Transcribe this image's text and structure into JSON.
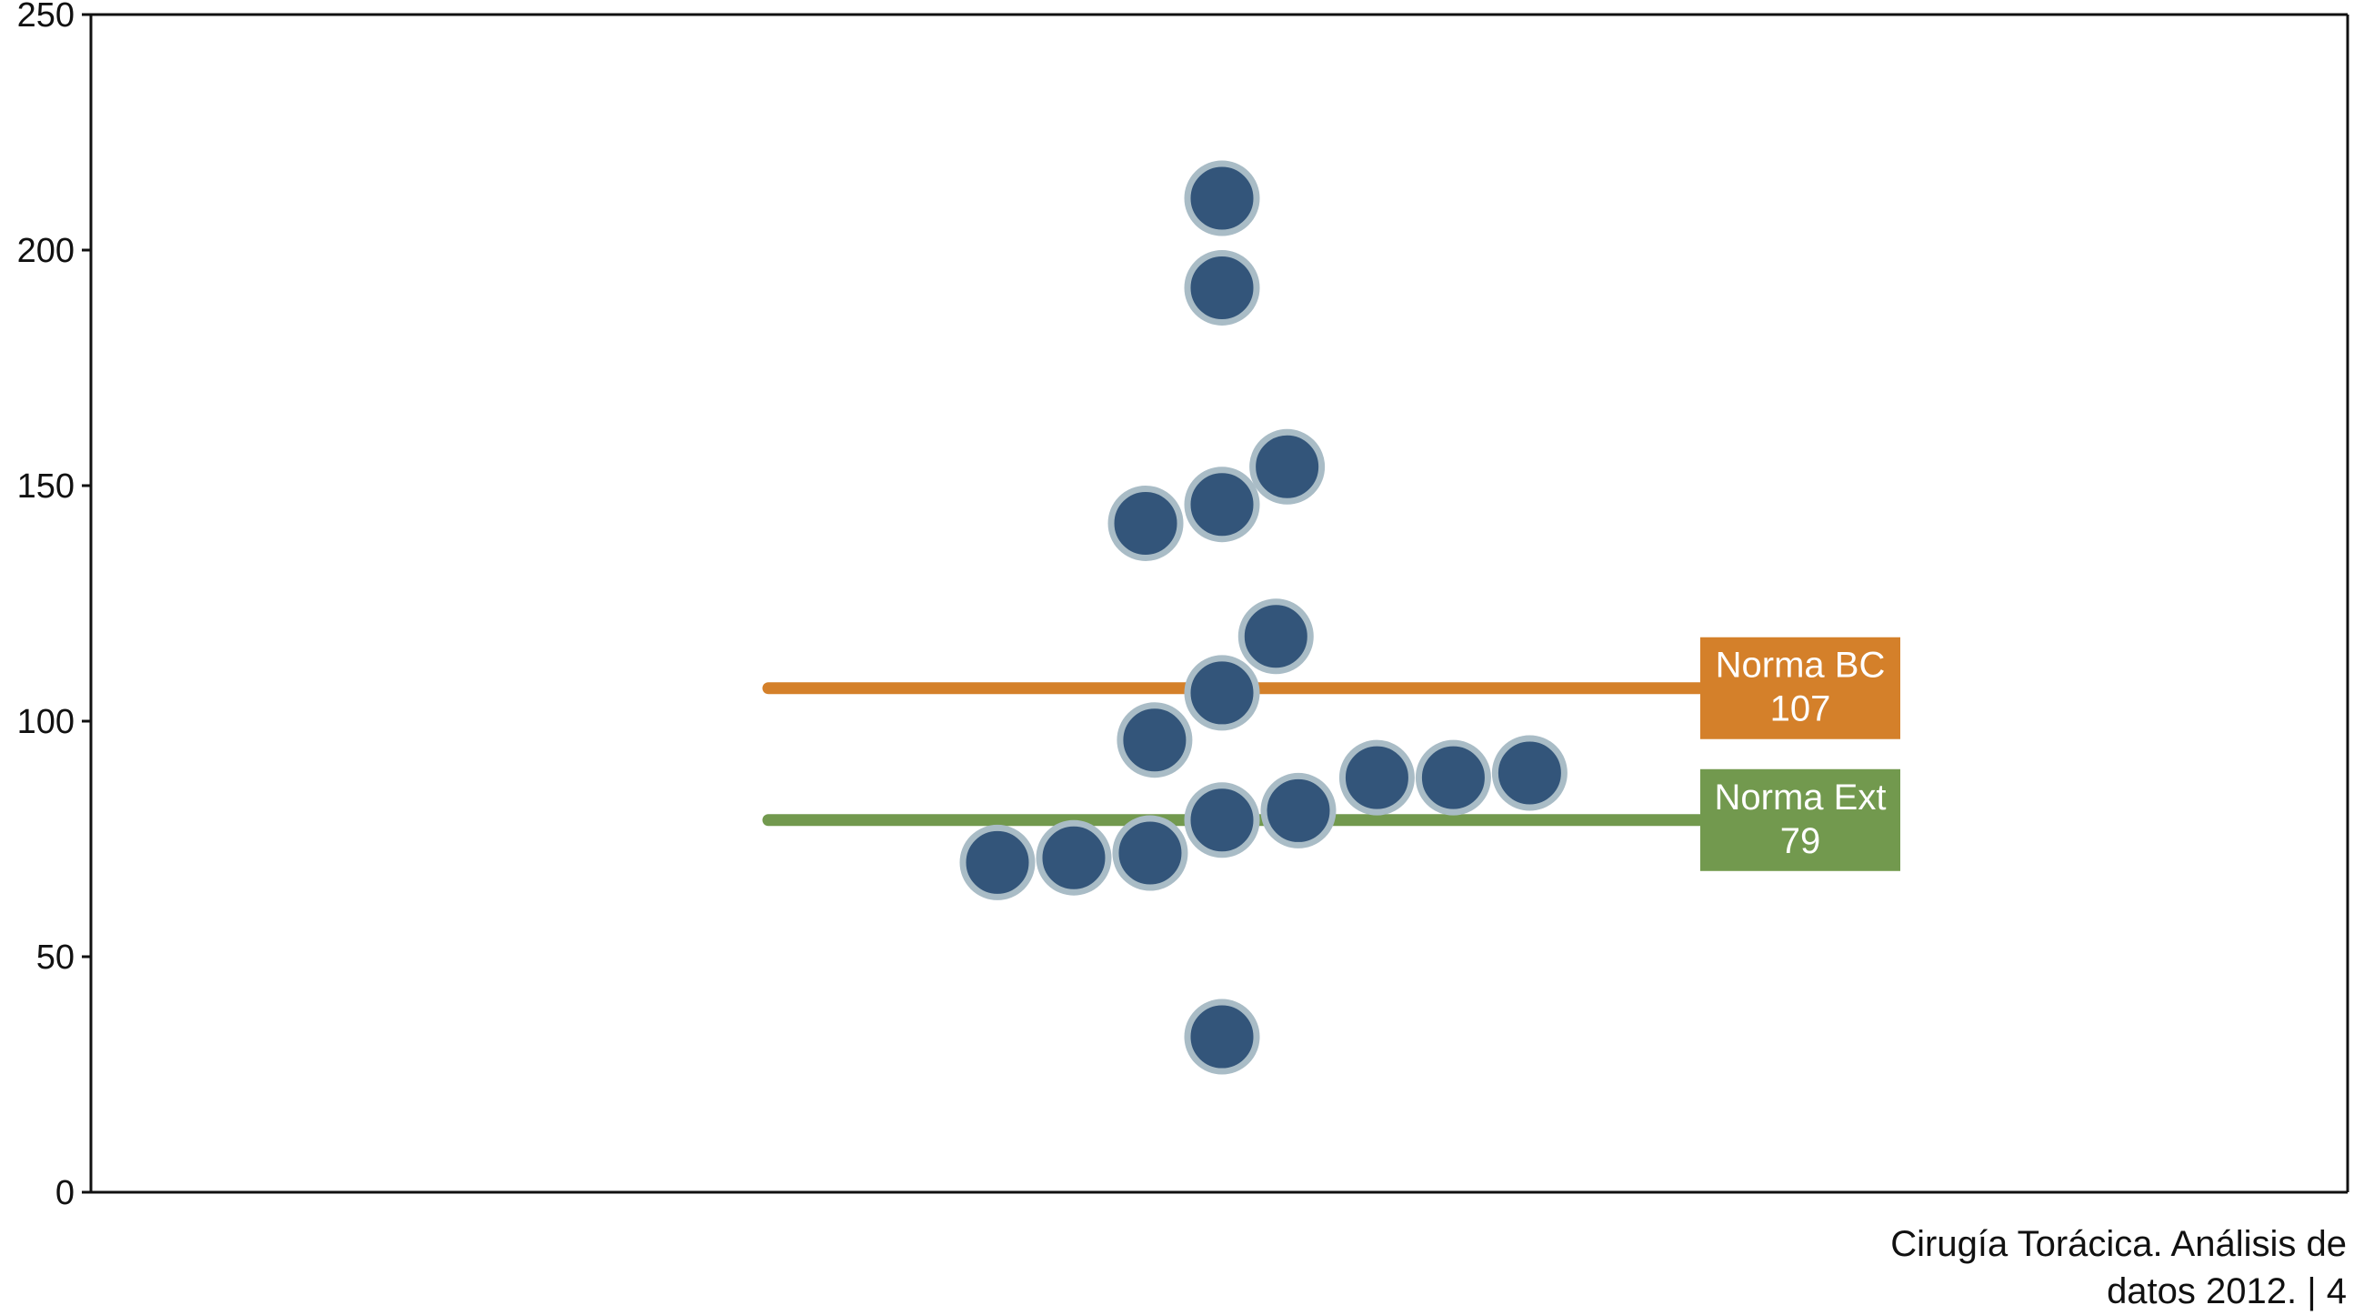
{
  "chart_data": {
    "type": "scatter",
    "ylim": [
      0,
      250
    ],
    "y_ticks": [
      0,
      50,
      100,
      150,
      200,
      250
    ],
    "grid": false,
    "points": [
      {
        "x": 0.0,
        "y": 211
      },
      {
        "x": 0.0,
        "y": 192
      },
      {
        "x": 0.29,
        "y": 154
      },
      {
        "x": -0.34,
        "y": 142
      },
      {
        "x": 0.0,
        "y": 146
      },
      {
        "x": 0.24,
        "y": 118
      },
      {
        "x": 0.0,
        "y": 106
      },
      {
        "x": -0.3,
        "y": 96
      },
      {
        "x": 0.69,
        "y": 88
      },
      {
        "x": 1.03,
        "y": 88
      },
      {
        "x": 1.37,
        "y": 89
      },
      {
        "x": 0.34,
        "y": 81
      },
      {
        "x": 0.0,
        "y": 79
      },
      {
        "x": -0.32,
        "y": 72
      },
      {
        "x": -0.66,
        "y": 71
      },
      {
        "x": -1.0,
        "y": 70
      },
      {
        "x": 0.0,
        "y": 33
      }
    ],
    "reference_lines": [
      {
        "name": "Norma BC",
        "value_label": "107",
        "y": 107,
        "color": "#d4802a"
      },
      {
        "name": "Norma Ext",
        "value_label": "79",
        "y": 79,
        "color": "#72994e"
      }
    ],
    "point_fill": "#33557a",
    "point_stroke": "#a9bcc6"
  },
  "footer": {
    "line1": "Cirugía Torácica. Análisis de",
    "line2": "datos 2012. | 4"
  }
}
